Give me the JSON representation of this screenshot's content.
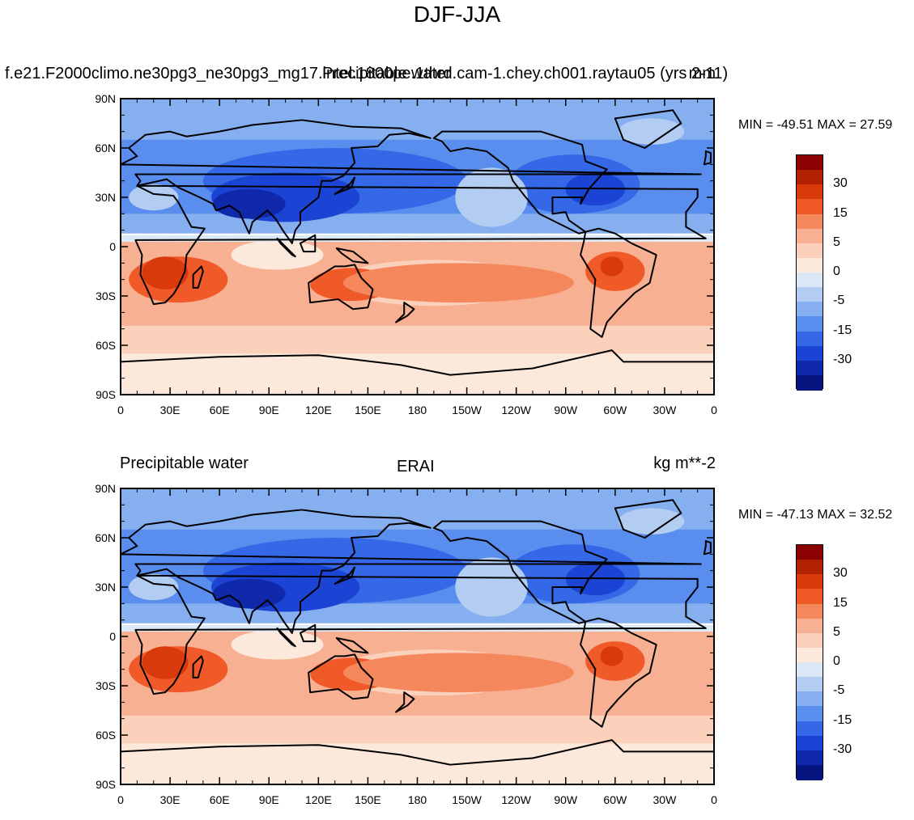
{
  "figure": {
    "main_title": "DJF-JJA"
  },
  "panels": [
    {
      "left_text": "f.e21.F2000climo.ne30pg3_ne30pg3_mg17.intel.1800pe.1thrd.cam-1.chey.ch001.raytau05 (yrs 2-11)",
      "center_text": "Precipitable water",
      "right_text": "mm",
      "stats": "MIN = -49.51 MAX =  27.59"
    },
    {
      "left_text": "Precipitable water",
      "center_text": "ERAI",
      "right_text": "kg m**-2",
      "stats": "MIN = -47.13 MAX =  32.52"
    }
  ],
  "axes": {
    "lat_ticks": [
      "90N",
      "60N",
      "30N",
      "0",
      "30S",
      "60S",
      "90S"
    ],
    "lon_ticks": [
      "0",
      "30E",
      "60E",
      "90E",
      "120E",
      "150E",
      "180",
      "150W",
      "120W",
      "90W",
      "60W",
      "30W",
      "0"
    ]
  },
  "colorbar": {
    "labels": [
      "30",
      "15",
      "5",
      "0",
      "-5",
      "-15",
      "-30"
    ],
    "colors": [
      "#8b0000",
      "#b22200",
      "#d93a0c",
      "#ef5a28",
      "#f5875c",
      "#f8b092",
      "#fbd1bc",
      "#fde9dc",
      "#dbe9f7",
      "#b3cdf2",
      "#86aff0",
      "#5a8eee",
      "#3568e6",
      "#1c44d4",
      "#1028aa",
      "#061580"
    ]
  },
  "chart_data": [
    {
      "type": "heatmap",
      "title": "f.e21.F2000climo.ne30pg3_ne30pg3_mg17.intel.1800pe.1thrd.cam-1.chey.ch001.raytau05 (yrs 2-11)",
      "subtitle": "Precipitable water",
      "units": "mm",
      "xlim": [
        0,
        360
      ],
      "ylim": [
        -90,
        90
      ],
      "min": -49.51,
      "max": 27.59,
      "levels": [
        -30,
        -15,
        -5,
        0,
        5,
        15,
        30
      ]
    },
    {
      "type": "heatmap",
      "title": "Precipitable water",
      "subtitle": "ERAI",
      "units": "kg m**-2",
      "xlim": [
        0,
        360
      ],
      "ylim": [
        -90,
        90
      ],
      "min": -47.13,
      "max": 32.52,
      "levels": [
        -30,
        -15,
        -5,
        0,
        5,
        15,
        30
      ]
    }
  ]
}
